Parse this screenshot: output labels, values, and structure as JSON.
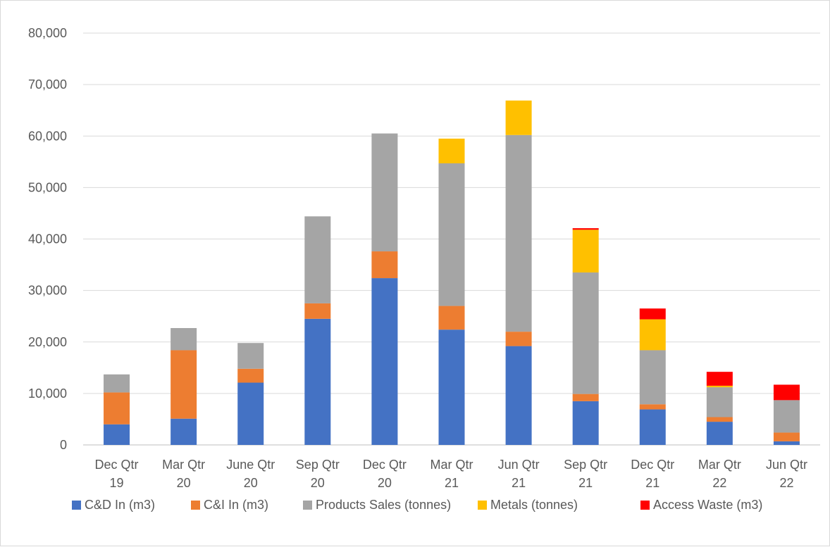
{
  "chart_data": {
    "type": "bar",
    "stacked": true,
    "title": "",
    "xlabel": "",
    "ylabel": "",
    "ylim": [
      0,
      80000
    ],
    "y_ticks": [
      "0",
      "10,000",
      "20,000",
      "30,000",
      "40,000",
      "50,000",
      "60,000",
      "70,000",
      "80,000"
    ],
    "grid": true,
    "legend_position": "bottom",
    "categories": [
      [
        "Dec Qtr",
        "19"
      ],
      [
        "Mar Qtr",
        "20"
      ],
      [
        "June Qtr",
        "20"
      ],
      [
        "Sep Qtr",
        "20"
      ],
      [
        "Dec Qtr",
        "20"
      ],
      [
        "Mar Qtr",
        "21"
      ],
      [
        "Jun Qtr",
        "21"
      ],
      [
        "Sep Qtr",
        "21"
      ],
      [
        "Dec Qtr",
        "21"
      ],
      [
        "Mar Qtr",
        "22"
      ],
      [
        "Jun Qtr",
        "22"
      ]
    ],
    "series": [
      {
        "name": "C&D In (m3)",
        "color": "#4472C4",
        "values": [
          4000,
          5100,
          12100,
          24500,
          32400,
          22400,
          19200,
          8500,
          6900,
          4500,
          700
        ]
      },
      {
        "name": "C&I In (m3)",
        "color": "#ED7D31",
        "values": [
          6200,
          13300,
          2700,
          3000,
          5200,
          4600,
          2800,
          1400,
          1000,
          900,
          1700
        ]
      },
      {
        "name": "Products Sales (tonnes)",
        "color": "#A5A5A5",
        "values": [
          3500,
          4300,
          5000,
          16900,
          22900,
          27700,
          38200,
          23600,
          10500,
          5800,
          6300
        ]
      },
      {
        "name": "Metals (tonnes)",
        "color": "#FFC000",
        "values": [
          0,
          0,
          0,
          0,
          0,
          4800,
          6700,
          8300,
          6000,
          300,
          0
        ]
      },
      {
        "name": "Access Waste (m3)",
        "color": "#FF0000",
        "values": [
          0,
          0,
          0,
          0,
          0,
          0,
          0,
          300,
          2100,
          2700,
          3000
        ]
      }
    ]
  }
}
